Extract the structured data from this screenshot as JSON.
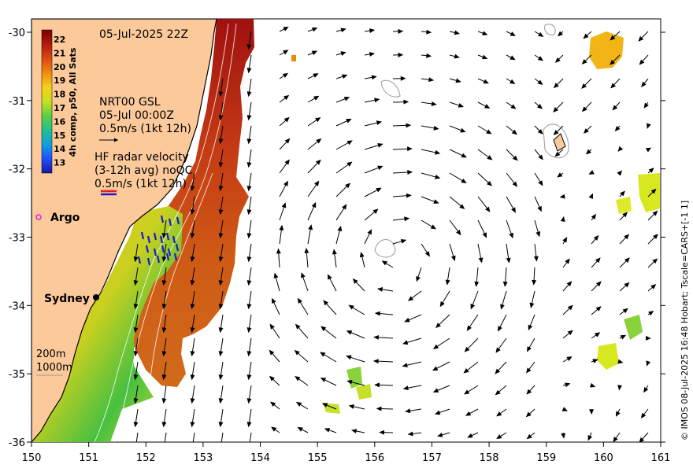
{
  "map": {
    "date_title": "05-Jul-2025 22Z",
    "colorbar": {
      "label": "4h comp, p50, All Sats",
      "ticks": [
        "22",
        "21",
        "20",
        "19",
        "18",
        "17",
        "16",
        "15",
        "14",
        "13"
      ],
      "colors": [
        "#7a0000",
        "#b01a10",
        "#d84a12",
        "#f08a10",
        "#f7d11a",
        "#c8e020",
        "#5cd046",
        "#20c090",
        "#10a0e0",
        "#2050ff",
        "#1818a0"
      ]
    },
    "gsl_legend": {
      "line1": "NRT00 GSL",
      "line2": "05-Jul 00:00Z",
      "line3": "0.5m/s (1kt 12h)"
    },
    "radar_legend": {
      "line1": "HF radar velocity",
      "line2": "(3-12h avg) noQC",
      "line3": "0.5m/s (1kt 12h)"
    },
    "argo_label": "Argo",
    "city_label": "Sydney",
    "depth_200": "200m",
    "depth_1000": "1000m",
    "credit": "© IMOS 08-Jul-2025 16:48 Hobart; Tscale=CARS+[-1 1]",
    "x_ticks": [
      "150",
      "151",
      "152",
      "153",
      "154",
      "155",
      "156",
      "157",
      "158",
      "159",
      "160",
      "161"
    ],
    "y_ticks": [
      "-30",
      "-31",
      "-32",
      "-33",
      "-34",
      "-35",
      "-36"
    ],
    "colors": {
      "land": "#fbc99a",
      "coast": "#000000",
      "arrow": "#000000",
      "radar": "#1a1acc",
      "argo": "#e020e0"
    }
  },
  "chart_data": {
    "type": "map",
    "lon_range": [
      150,
      161
    ],
    "lat_range": [
      -36,
      -30
    ],
    "sst_range_C": [
      13,
      22
    ]
  }
}
